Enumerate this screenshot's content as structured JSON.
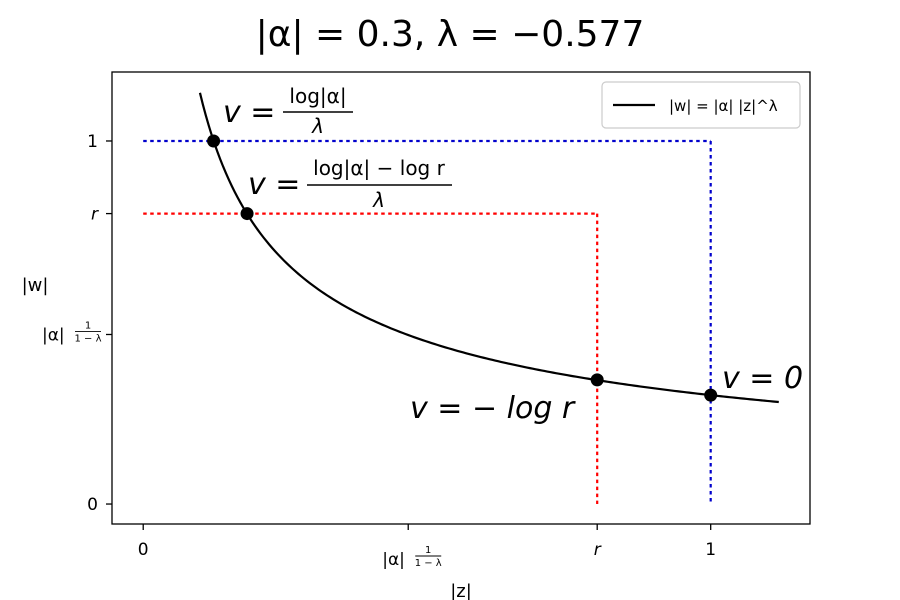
{
  "chart_data": {
    "type": "line",
    "title": "|α| = 0.3, λ = −0.577",
    "params": {
      "alpha_abs": 0.3,
      "lambda": -0.577,
      "r": 0.8
    },
    "xlabel": "|z|",
    "ylabel": "|w|",
    "xlim": [
      -0.055,
      1.175
    ],
    "ylim": [
      -0.055,
      1.19
    ],
    "x_ticks": [
      {
        "value": 0,
        "label": "0"
      },
      {
        "value": 0.467,
        "label_base": "|α|",
        "label_exp_num": "1",
        "label_exp_den": "1 − λ"
      },
      {
        "value": 0.8,
        "label": "r"
      },
      {
        "value": 1,
        "label": "1"
      }
    ],
    "y_ticks": [
      {
        "value": 0,
        "label": "0"
      },
      {
        "value": 0.467,
        "label_base": "|α|",
        "label_exp_num": "1",
        "label_exp_den": "1 − λ"
      },
      {
        "value": 0.8,
        "label": "r"
      },
      {
        "value": 1,
        "label": "1"
      }
    ],
    "series": [
      {
        "name": "|w| = |α| |z|^λ",
        "color": "#000000",
        "x_range": [
          0.1,
          1.12
        ]
      }
    ],
    "guides": [
      {
        "color": "#0000cc",
        "level": 1,
        "ends_at_x": 1
      },
      {
        "color": "#ff0000",
        "level": 0.8,
        "ends_at_x": 0.8
      }
    ],
    "points": [
      {
        "x": 0.124,
        "y": 1.0
      },
      {
        "x": 0.183,
        "y": 0.8
      },
      {
        "x": 0.8,
        "y": 0.342
      },
      {
        "x": 1.0,
        "y": 0.3
      }
    ],
    "annotations": {
      "a1_lhs": "v =",
      "a1_num": "log|α|",
      "a1_den": "λ",
      "a2_lhs": "v =",
      "a2_num": "log|α| − log r",
      "a2_den": "λ",
      "a3": "v = − log r",
      "a4": "v = 0"
    },
    "legend_position": "top-right",
    "grid": false
  }
}
